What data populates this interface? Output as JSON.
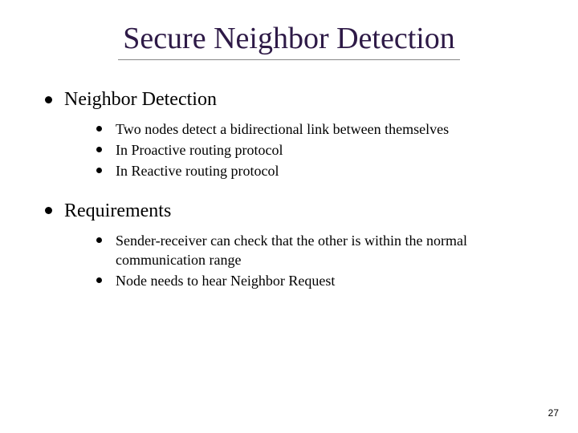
{
  "slide": {
    "title": "Secure Neighbor Detection",
    "title_color": "#2e1a47",
    "title_fontsize": 38,
    "underline_color": "#888888",
    "sections": [
      {
        "heading": "Neighbor Detection",
        "items": [
          "Two nodes detect a bidirectional link between themselves",
          "In Proactive routing protocol",
          "In Reactive routing protocol"
        ]
      },
      {
        "heading": "Requirements",
        "items": [
          "Sender-receiver can check that the other is within the normal communication range",
          "Node needs to hear Neighbor Request"
        ]
      }
    ],
    "page_number": "27",
    "background_color": "#ffffff",
    "text_color": "#000000",
    "level1_fontsize": 24,
    "level2_fontsize": 18
  }
}
